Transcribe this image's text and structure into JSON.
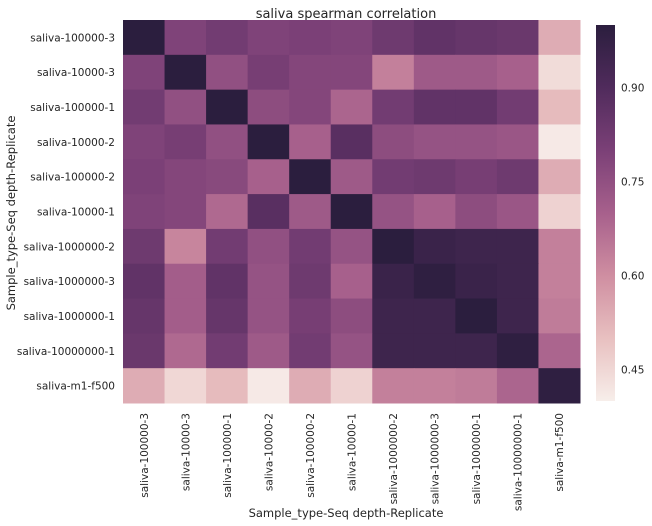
{
  "chart_data": {
    "type": "heatmap",
    "title": "saliva spearman correlation",
    "xlabel": "Sample_type-Seq depth-Replicate",
    "ylabel": "Sample_type-Seq depth-Replicate",
    "rows": [
      "saliva-100000-3",
      "saliva-10000-3",
      "saliva-100000-1",
      "saliva-10000-2",
      "saliva-100000-2",
      "saliva-10000-1",
      "saliva-1000000-2",
      "saliva-1000000-3",
      "saliva-1000000-1",
      "saliva-10000000-1",
      "saliva-m1-f500"
    ],
    "columns": [
      "saliva-100000-3",
      "saliva-10000-3",
      "saliva-100000-1",
      "saliva-10000-2",
      "saliva-100000-2",
      "saliva-10000-1",
      "saliva-1000000-2",
      "saliva-1000000-3",
      "saliva-1000000-1",
      "saliva-10000000-1",
      "saliva-m1-f500"
    ],
    "values": [
      [
        1.0,
        0.79,
        0.82,
        0.79,
        0.8,
        0.79,
        0.83,
        0.86,
        0.85,
        0.84,
        0.54
      ],
      [
        0.79,
        1.0,
        0.75,
        0.81,
        0.78,
        0.78,
        0.63,
        0.72,
        0.72,
        0.7,
        0.44
      ],
      [
        0.82,
        0.75,
        1.0,
        0.76,
        0.78,
        0.69,
        0.82,
        0.86,
        0.86,
        0.82,
        0.51
      ],
      [
        0.79,
        0.81,
        0.75,
        1.0,
        0.7,
        0.88,
        0.76,
        0.74,
        0.74,
        0.73,
        0.41
      ],
      [
        0.8,
        0.78,
        0.77,
        0.7,
        1.0,
        0.72,
        0.82,
        0.83,
        0.81,
        0.83,
        0.54
      ],
      [
        0.79,
        0.78,
        0.68,
        0.88,
        0.72,
        1.0,
        0.74,
        0.7,
        0.76,
        0.73,
        0.46
      ],
      [
        0.83,
        0.62,
        0.82,
        0.75,
        0.82,
        0.74,
        1.0,
        0.96,
        0.95,
        0.95,
        0.63
      ],
      [
        0.86,
        0.71,
        0.86,
        0.74,
        0.83,
        0.7,
        0.96,
        0.99,
        0.96,
        0.95,
        0.63
      ],
      [
        0.85,
        0.71,
        0.85,
        0.74,
        0.81,
        0.76,
        0.95,
        0.95,
        1.0,
        0.95,
        0.64
      ],
      [
        0.84,
        0.68,
        0.82,
        0.72,
        0.82,
        0.74,
        0.95,
        0.95,
        0.95,
        0.99,
        0.69
      ],
      [
        0.54,
        0.45,
        0.51,
        0.41,
        0.54,
        0.46,
        0.63,
        0.63,
        0.64,
        0.69,
        0.99
      ]
    ],
    "colorbar": {
      "vmin": 0.4,
      "vmax": 1.0,
      "ticks": [
        "0.45",
        "0.60",
        "0.75",
        "0.90"
      ],
      "tick_values": [
        0.45,
        0.6,
        0.75,
        0.9
      ]
    },
    "colormap": [
      "#f7eeea",
      "#e8c0c0",
      "#cf8ea1",
      "#a7608c",
      "#7b4077",
      "#502b5c",
      "#2b1e3e"
    ],
    "grid": false
  }
}
